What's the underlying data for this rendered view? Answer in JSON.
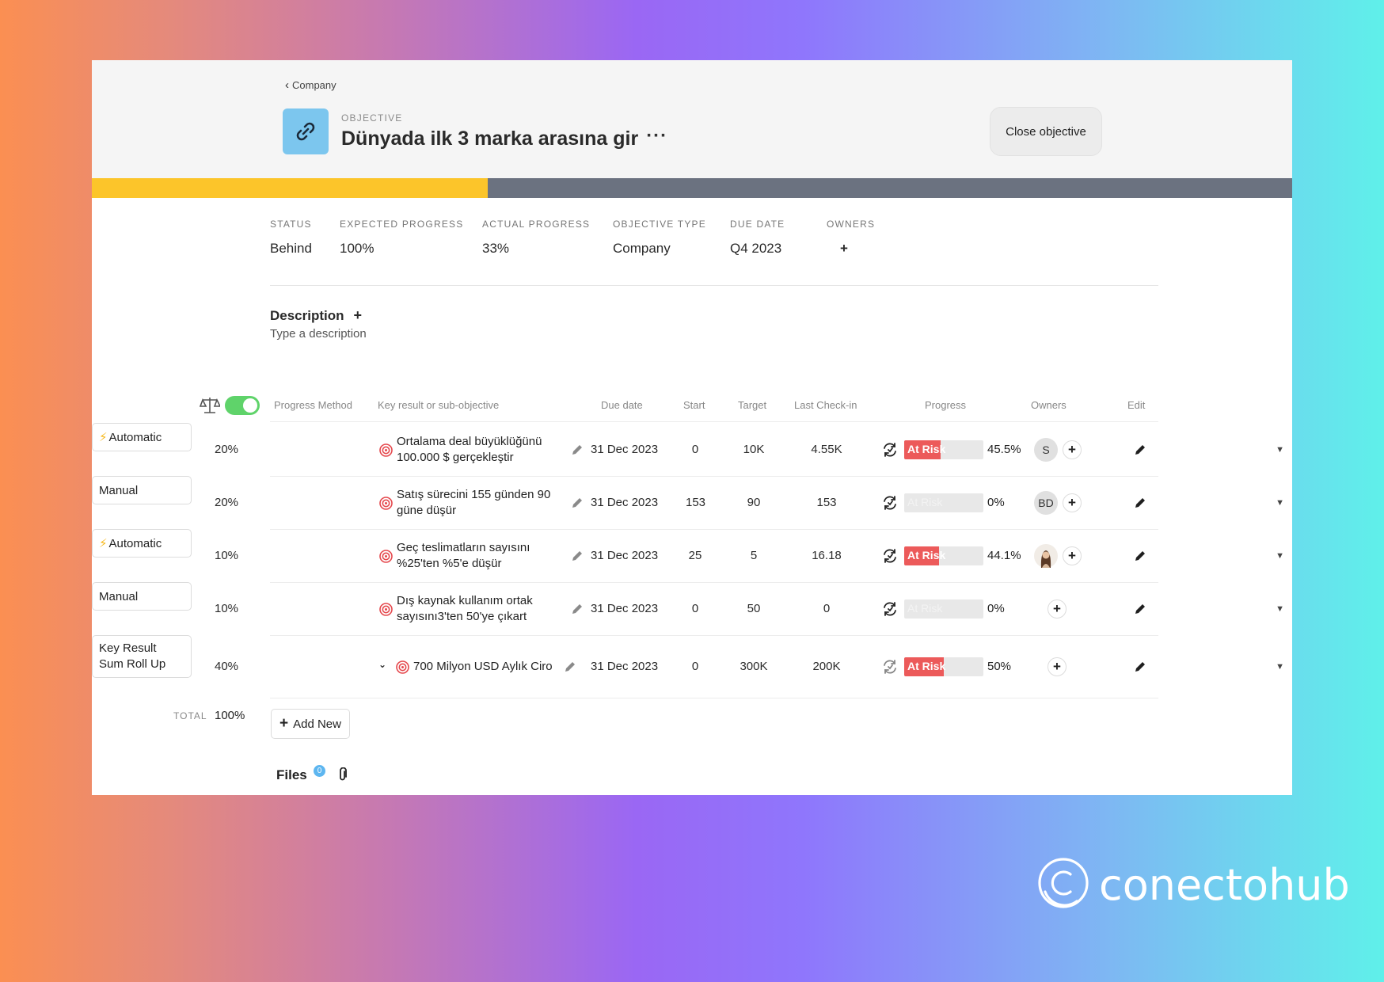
{
  "breadcrumb": {
    "label": "Company"
  },
  "objective": {
    "eyebrow": "OBJECTIVE",
    "title": "Dünyada ilk 3 marka arasına gir",
    "more": "···",
    "close_label": "Close objective",
    "progress_fraction": 0.33
  },
  "stats": [
    {
      "label": "STATUS",
      "value": "Behind"
    },
    {
      "label": "EXPECTED PROGRESS",
      "value": "100%"
    },
    {
      "label": "ACTUAL PROGRESS",
      "value": "33%"
    },
    {
      "label": "OBJECTIVE TYPE",
      "value": "Company"
    },
    {
      "label": "DUE DATE",
      "value": "Q4 2023"
    },
    {
      "label": "OWNERS",
      "value": "+"
    }
  ],
  "description": {
    "title": "Description",
    "add": "+",
    "placeholder": "Type a description"
  },
  "table": {
    "weight_toggle_on": true,
    "headers": {
      "method": "Progress Method",
      "kr": "Key result or sub-objective",
      "due": "Due date",
      "start": "Start",
      "target": "Target",
      "checkin": "Last Check-in",
      "progress": "Progress",
      "owners": "Owners",
      "edit": "Edit"
    },
    "rows": [
      {
        "weight": "20%",
        "method": "Automatic",
        "auto": true,
        "name": "Ortalama deal büyüklüğünü 100.000 $ gerçekleştir",
        "due": "31 Dec 2023",
        "start": "0",
        "target": "10K",
        "checkin": "4.55K",
        "status": "At Risk",
        "progress": 0.455,
        "pct": "45.5%",
        "owner": "S"
      },
      {
        "weight": "20%",
        "method": "Manual",
        "auto": false,
        "name": "Satış sürecini 155 günden 90 güne düşür",
        "due": "31 Dec 2023",
        "start": "153",
        "target": "90",
        "checkin": "153",
        "status": "At Risk",
        "progress": 0,
        "pct": "0%",
        "owner": "BD"
      },
      {
        "weight": "10%",
        "method": "Automatic",
        "auto": true,
        "name": "Geç teslimatların sayısını %25'ten %5'e düşür",
        "due": "31 Dec 2023",
        "start": "25",
        "target": "5",
        "checkin": "16.18",
        "status": "At Risk",
        "progress": 0.441,
        "pct": "44.1%",
        "owner": ""
      },
      {
        "weight": "10%",
        "method": "Manual",
        "auto": false,
        "name": "Dış kaynak kullanım ortak sayısını3'ten 50'ye çıkart",
        "due": "31 Dec 2023",
        "start": "0",
        "target": "50",
        "checkin": "0",
        "status": "At Risk",
        "progress": 0,
        "pct": "0%",
        "owner": ""
      },
      {
        "weight": "40%",
        "method": "Key Result Sum Roll Up",
        "auto": false,
        "name": "700 Milyon USD Aylık Ciro",
        "due": "31 Dec 2023",
        "start": "0",
        "target": "300K",
        "checkin": "200K",
        "status": "At Risk",
        "progress": 0.5,
        "pct": "50%",
        "owner": ""
      }
    ],
    "total_label": "TOTAL",
    "total_value": "100%",
    "add_new": "Add New"
  },
  "files": {
    "title": "Files",
    "count": "0"
  },
  "brand": {
    "name": "conectohub"
  },
  "colors": {
    "accent_yellow": "#fcc52a",
    "bar_gray": "#6b7280",
    "at_risk": "#ec5a5a",
    "toggle": "#5fd36a",
    "icon_bg": "#7cc6ee"
  }
}
